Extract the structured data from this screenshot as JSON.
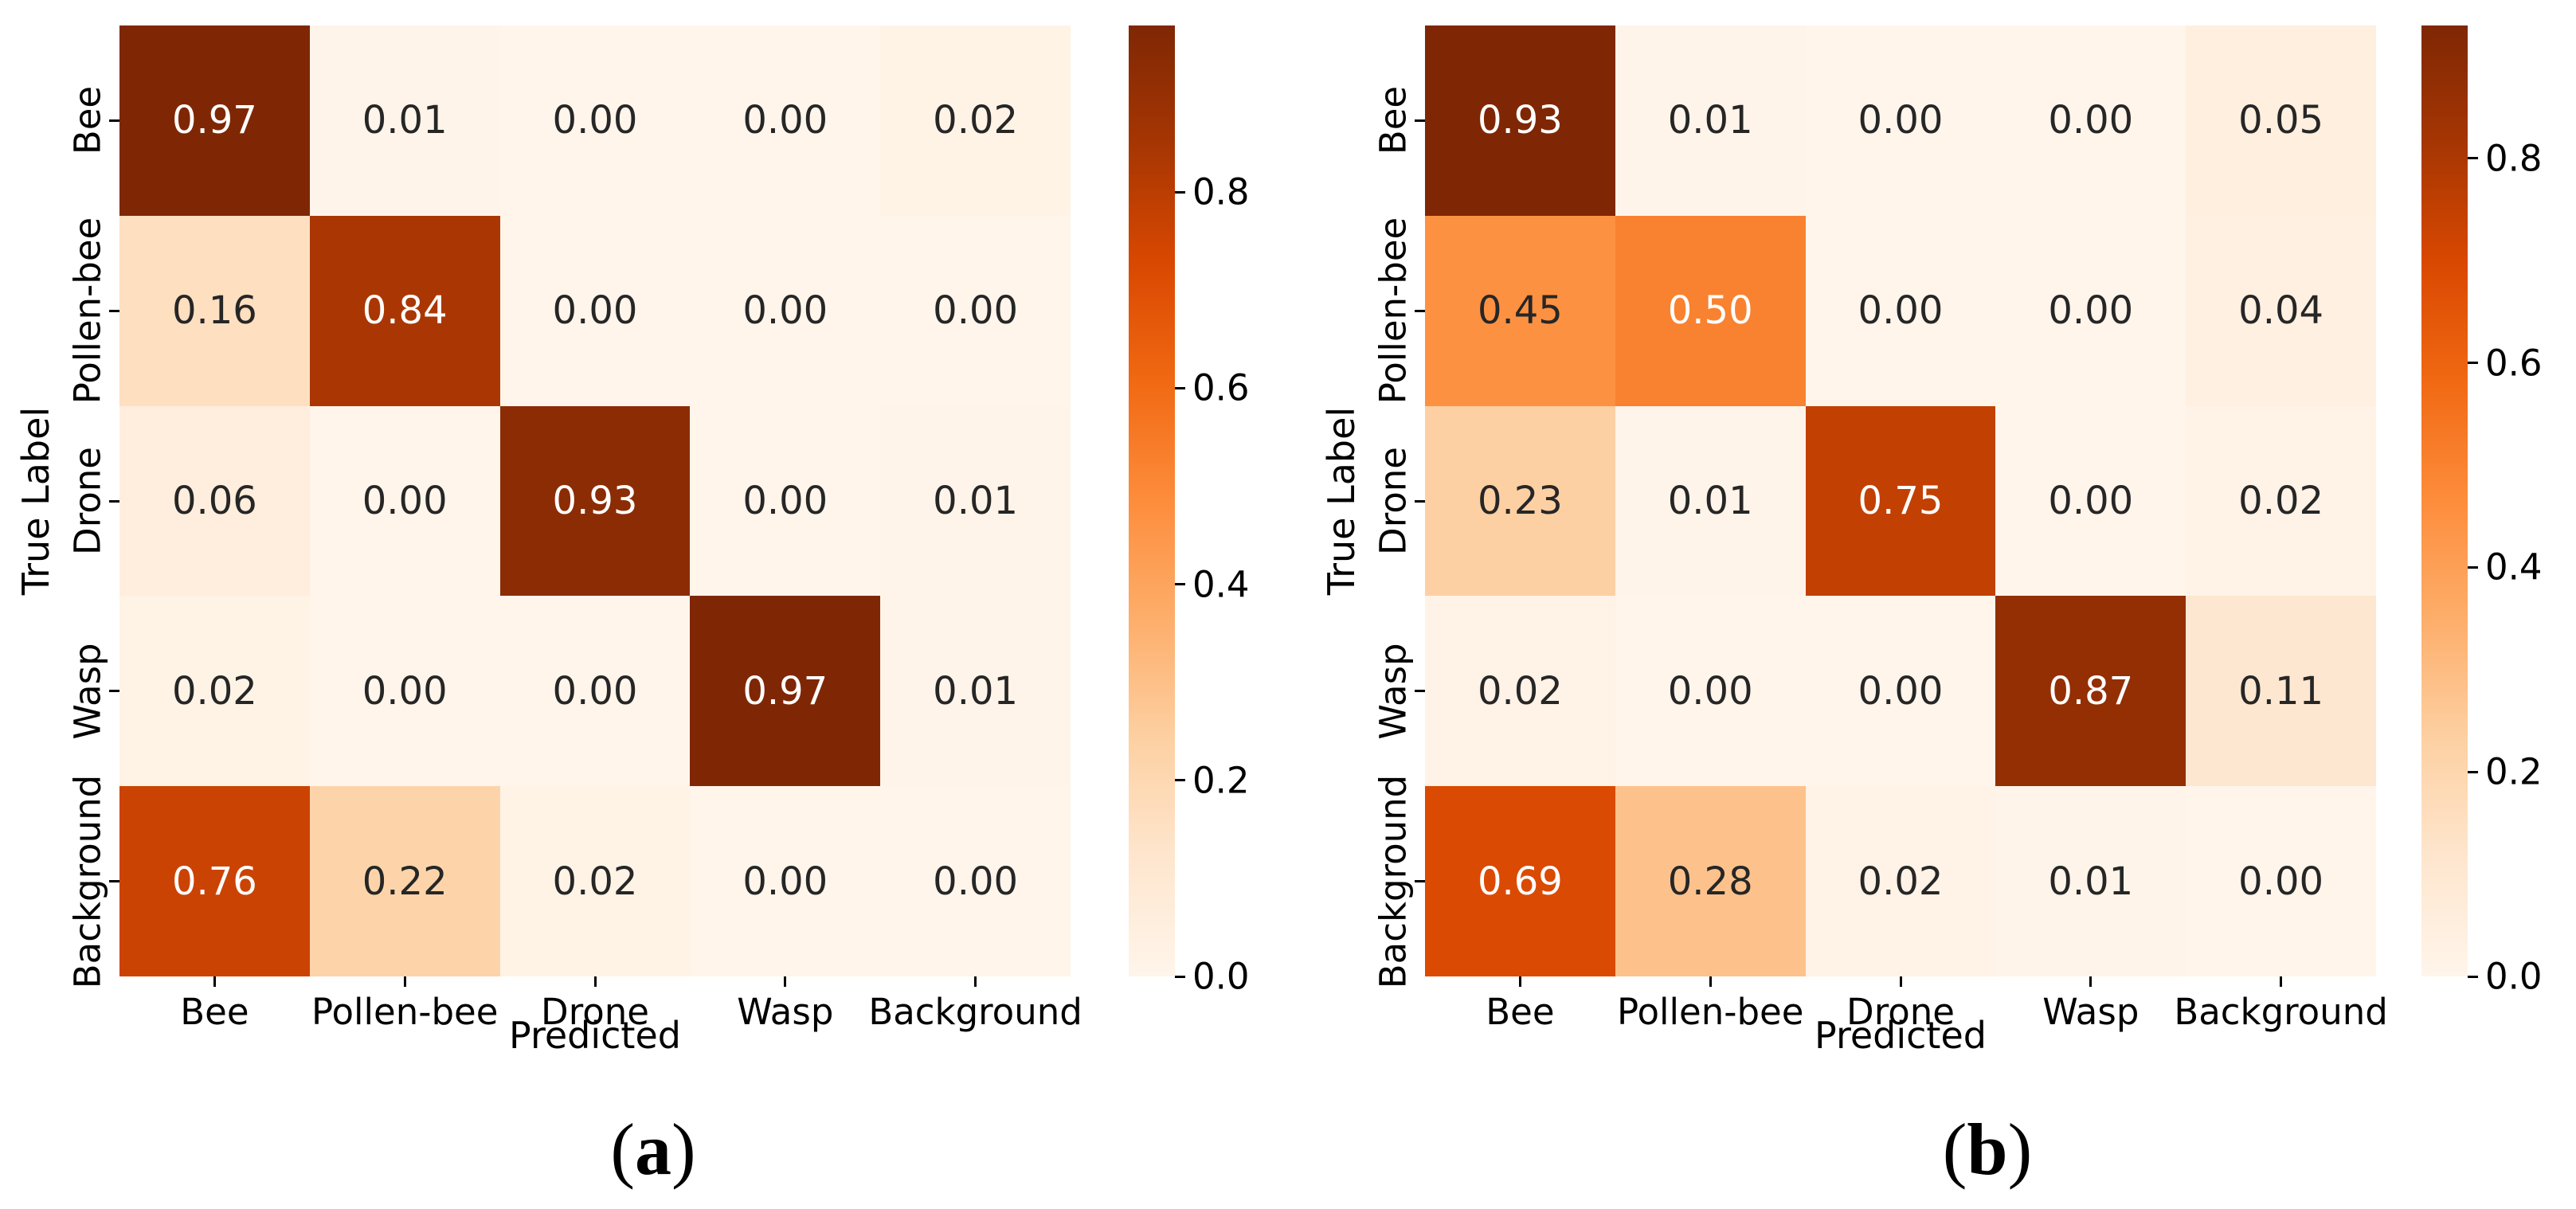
{
  "chart_data": [
    {
      "type": "heatmap",
      "panel_label": "(a)",
      "xlabel": "Predicted",
      "ylabel": "True Label",
      "x_categories": [
        "Bee",
        "Pollen-bee",
        "Drone",
        "Wasp",
        "Background"
      ],
      "y_categories": [
        "Bee",
        "Pollen-bee",
        "Drone",
        "Wasp",
        "Background"
      ],
      "matrix": [
        [
          0.97,
          0.01,
          0.0,
          0.0,
          0.02
        ],
        [
          0.16,
          0.84,
          0.0,
          0.0,
          0.0
        ],
        [
          0.06,
          0.0,
          0.93,
          0.0,
          0.01
        ],
        [
          0.02,
          0.0,
          0.0,
          0.97,
          0.01
        ],
        [
          0.76,
          0.22,
          0.02,
          0.0,
          0.0
        ]
      ],
      "vmin": 0.0,
      "vmax": 0.97,
      "colorbar_ticks": [
        0.8,
        0.6,
        0.4,
        0.2,
        0.0
      ],
      "colormap": "Oranges",
      "legend_position": "right",
      "grid": false
    },
    {
      "type": "heatmap",
      "panel_label": "(b)",
      "xlabel": "Predicted",
      "ylabel": "True Label",
      "x_categories": [
        "Bee",
        "Pollen-bee",
        "Drone",
        "Wasp",
        "Background"
      ],
      "y_categories": [
        "Bee",
        "Pollen-bee",
        "Drone",
        "Wasp",
        "Background"
      ],
      "matrix": [
        [
          0.93,
          0.01,
          0.0,
          0.0,
          0.05
        ],
        [
          0.45,
          0.5,
          0.0,
          0.0,
          0.04
        ],
        [
          0.23,
          0.01,
          0.75,
          0.0,
          0.02
        ],
        [
          0.02,
          0.0,
          0.0,
          0.87,
          0.11
        ],
        [
          0.69,
          0.28,
          0.02,
          0.01,
          0.0
        ]
      ],
      "vmin": 0.0,
      "vmax": 0.93,
      "colorbar_ticks": [
        0.8,
        0.6,
        0.4,
        0.2,
        0.0
      ],
      "colormap": "Oranges",
      "legend_position": "right",
      "grid": false
    }
  ],
  "style": {
    "colormap_anchors": [
      "#fff5eb",
      "#fee6ce",
      "#fdd0a2",
      "#fdae6b",
      "#fd8d3c",
      "#f16913",
      "#d94801",
      "#a63603",
      "#7f2704"
    ],
    "annotation_dark": "#262626",
    "annotation_light": "#ffffff",
    "tick_color": "#000000",
    "background": "#ffffff"
  }
}
